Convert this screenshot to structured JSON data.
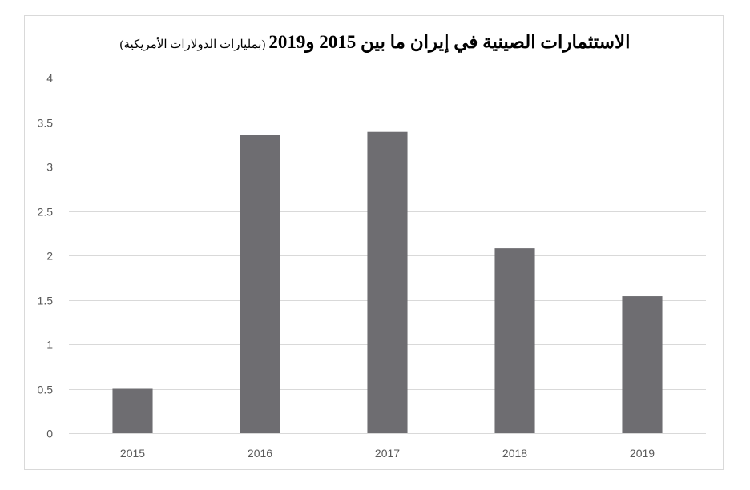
{
  "chart_data": {
    "type": "bar",
    "title": "الاستثمارات الصينية في إيران ما بين 2015 و2019",
    "subtitle": "(بمليارات الدولارات الأمريكية)",
    "categories": [
      "2015",
      "2016",
      "2017",
      "2018",
      "2019"
    ],
    "values": [
      0.5,
      3.36,
      3.39,
      2.08,
      1.54
    ],
    "ylim": [
      0,
      4
    ],
    "yticks": [
      "0",
      "0.5",
      "1",
      "1.5",
      "2",
      "2.5",
      "3",
      "3.5",
      "4"
    ],
    "grid": true,
    "legend": "none",
    "bar_color": "#6e6d71",
    "grid_color": "#d9d9d9"
  }
}
